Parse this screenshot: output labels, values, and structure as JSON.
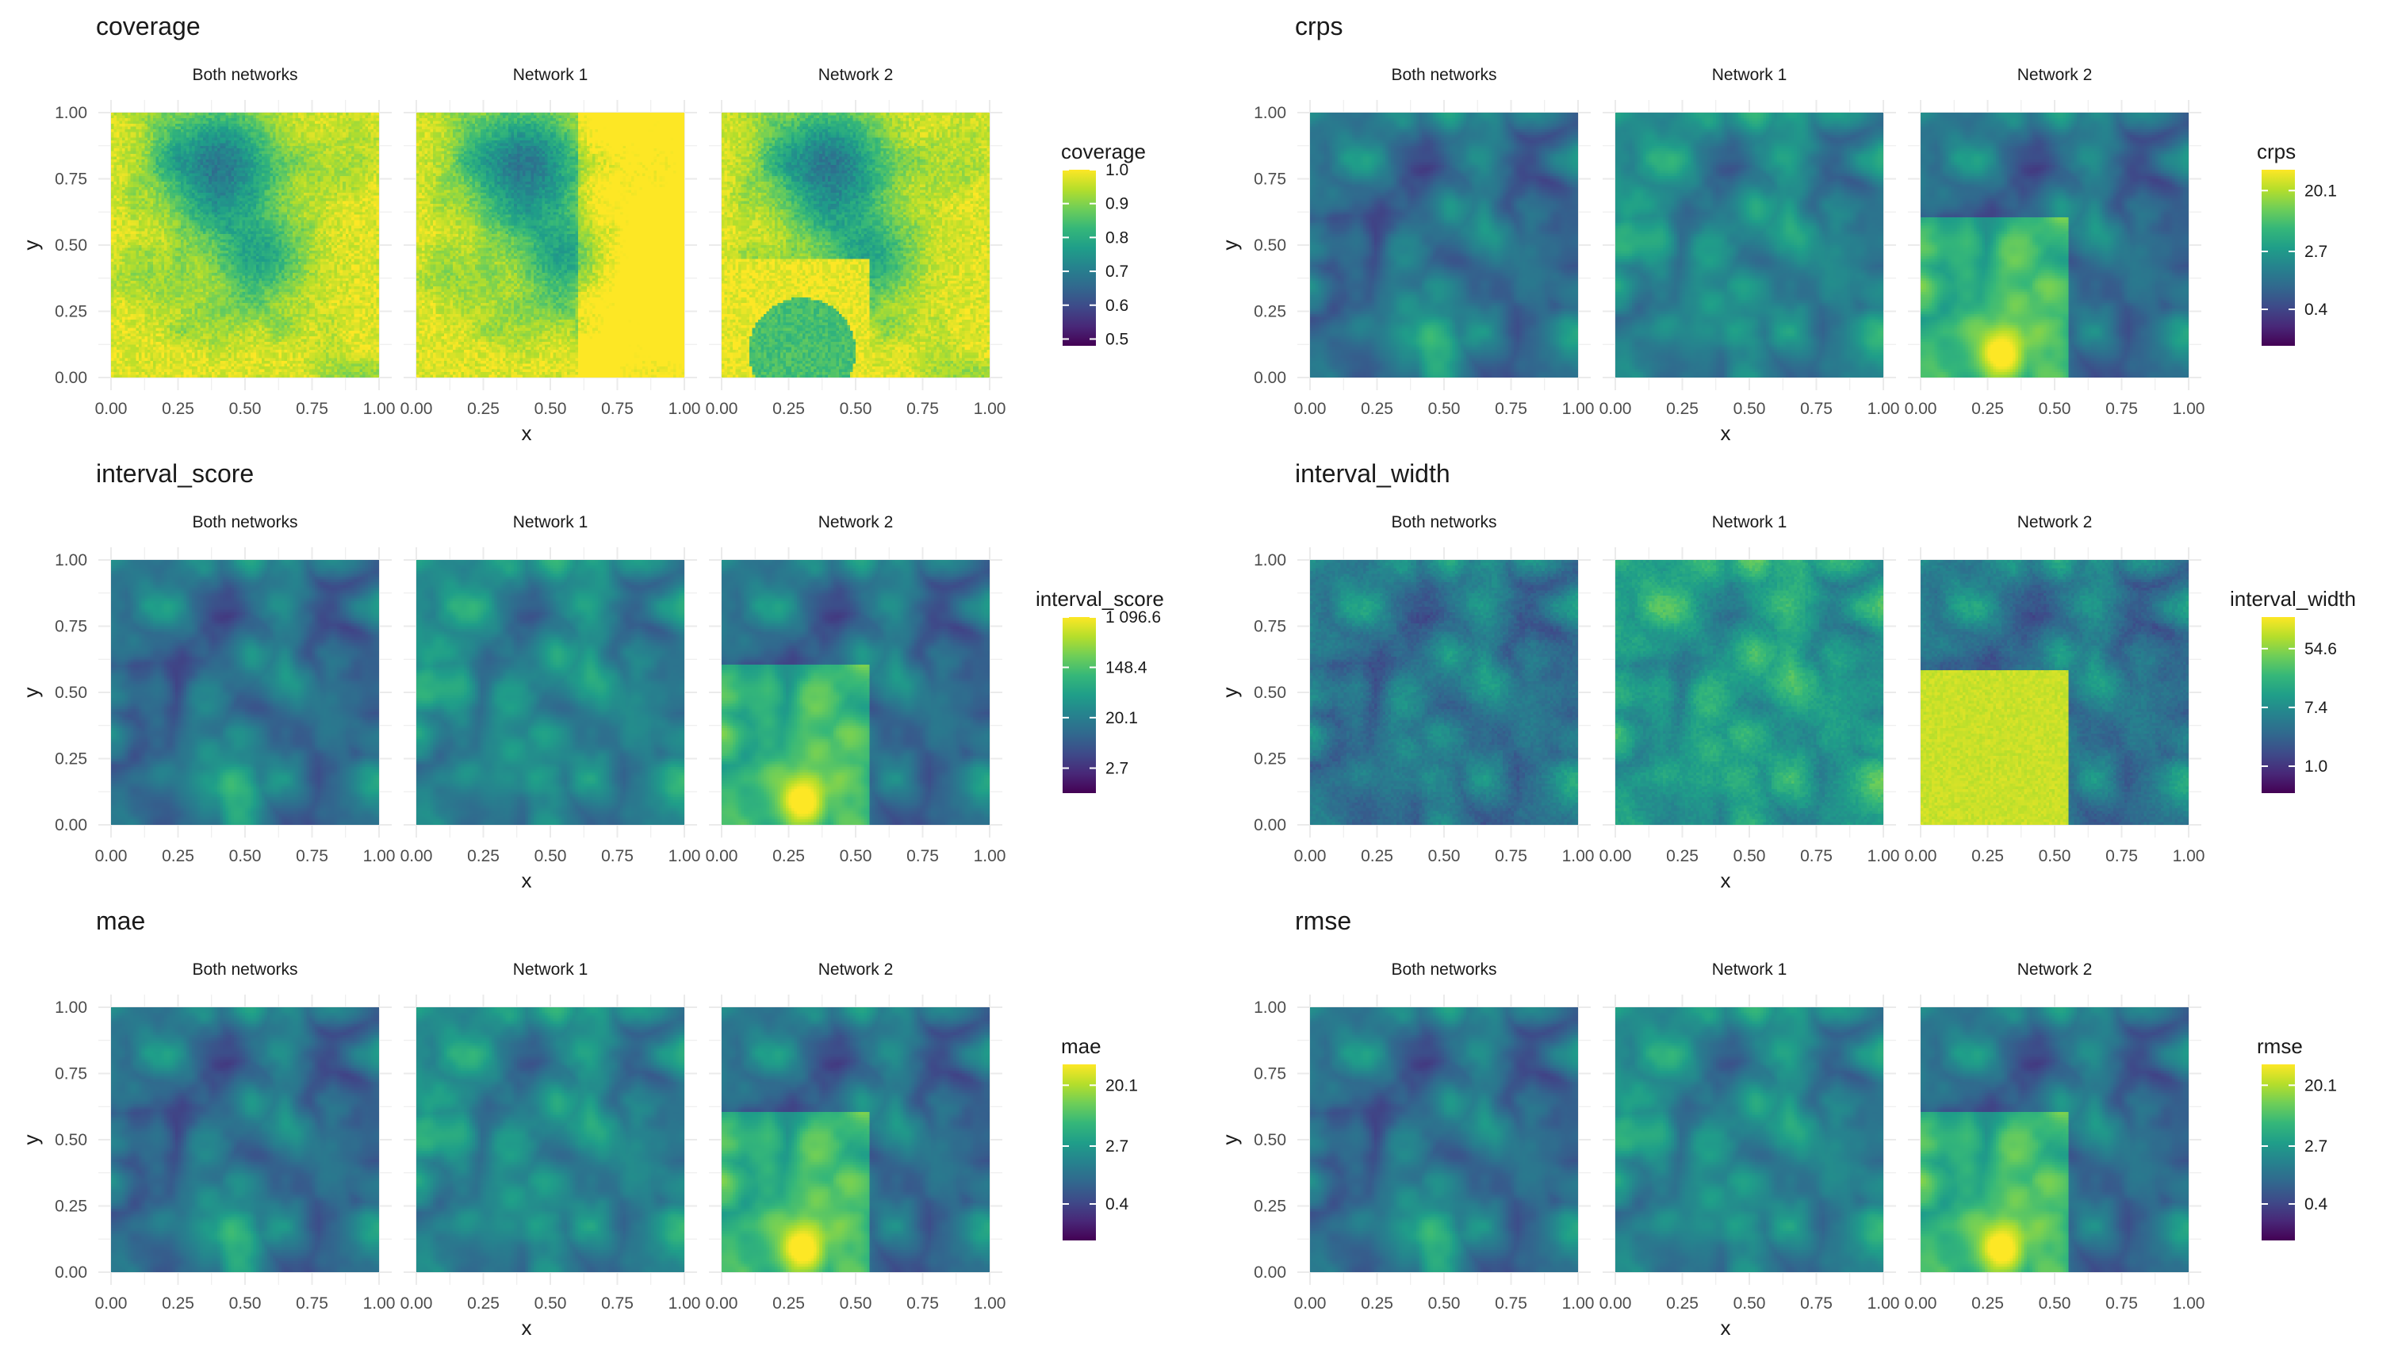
{
  "colors": {
    "background": "#ffffff",
    "grid": "#ebebeb",
    "viridis": [
      "#440154",
      "#482878",
      "#3e4a89",
      "#31688e",
      "#26828e",
      "#1f9e89",
      "#35b779",
      "#6ece58",
      "#b5de2b",
      "#fde725"
    ]
  },
  "chart_data": [
    {
      "type": "heatmap",
      "title": "coverage",
      "metric": "coverage",
      "facets": [
        "Both networks",
        "Network 1",
        "Network 2"
      ],
      "xlabel": "x",
      "ylabel": "y",
      "xticks": [
        "0.00",
        "0.25",
        "0.50",
        "0.75",
        "1.00"
      ],
      "yticks": [
        "0.00",
        "0.25",
        "0.50",
        "0.75",
        "1.00"
      ],
      "xlim": [
        0,
        1
      ],
      "ylim": [
        0,
        1
      ],
      "legend": {
        "title": "coverage",
        "scale": "linear",
        "range": [
          0.48,
          1.0
        ],
        "ticks": [
          "0.5",
          "0.6",
          "0.7",
          "0.8",
          "0.9",
          "1.0"
        ],
        "tick_values": [
          0.5,
          0.6,
          0.7,
          0.8,
          0.9,
          1.0
        ]
      },
      "pattern": "coverage"
    },
    {
      "type": "heatmap",
      "title": "crps",
      "metric": "crps",
      "facets": [
        "Both networks",
        "Network 1",
        "Network 2"
      ],
      "xlabel": "x",
      "ylabel": "y",
      "xticks": [
        "0.00",
        "0.25",
        "0.50",
        "0.75",
        "1.00"
      ],
      "yticks": [
        "0.00",
        "0.25",
        "0.50",
        "0.75",
        "1.00"
      ],
      "xlim": [
        0,
        1
      ],
      "ylim": [
        0,
        1
      ],
      "legend": {
        "title": "crps",
        "scale": "log",
        "range": [
          0.12,
          40
        ],
        "ticks": [
          "0.4",
          "2.7",
          "20.1"
        ],
        "tick_values": [
          0.4,
          2.7,
          20.1
        ]
      },
      "pattern": "error"
    },
    {
      "type": "heatmap",
      "title": "interval_score",
      "metric": "interval_score",
      "facets": [
        "Both networks",
        "Network 1",
        "Network 2"
      ],
      "xlabel": "x",
      "ylabel": "y",
      "xticks": [
        "0.00",
        "0.25",
        "0.50",
        "0.75",
        "1.00"
      ],
      "yticks": [
        "0.00",
        "0.25",
        "0.50",
        "0.75",
        "1.00"
      ],
      "xlim": [
        0,
        1
      ],
      "ylim": [
        0,
        1
      ],
      "legend": {
        "title": "interval_score",
        "scale": "log",
        "range": [
          1.0,
          1096.6
        ],
        "ticks": [
          "2.7",
          "20.1",
          "148.4",
          "1 096.6"
        ],
        "tick_values": [
          2.7,
          20.1,
          148.4,
          1096.6
        ]
      },
      "pattern": "error"
    },
    {
      "type": "heatmap",
      "title": "interval_width",
      "metric": "interval_width",
      "facets": [
        "Both networks",
        "Network 1",
        "Network 2"
      ],
      "xlabel": "x",
      "ylabel": "y",
      "xticks": [
        "0.00",
        "0.25",
        "0.50",
        "0.75",
        "1.00"
      ],
      "yticks": [
        "0.00",
        "0.25",
        "0.50",
        "0.75",
        "1.00"
      ],
      "xlim": [
        0,
        1
      ],
      "ylim": [
        0,
        1
      ],
      "legend": {
        "title": "interval_width",
        "scale": "log",
        "range": [
          0.4,
          160
        ],
        "ticks": [
          "1.0",
          "7.4",
          "54.6"
        ],
        "tick_values": [
          1.0,
          7.4,
          54.6
        ]
      },
      "pattern": "width"
    },
    {
      "type": "heatmap",
      "title": "mae",
      "metric": "mae",
      "facets": [
        "Both networks",
        "Network 1",
        "Network 2"
      ],
      "xlabel": "x",
      "ylabel": "y",
      "xticks": [
        "0.00",
        "0.25",
        "0.50",
        "0.75",
        "1.00"
      ],
      "yticks": [
        "0.00",
        "0.25",
        "0.50",
        "0.75",
        "1.00"
      ],
      "xlim": [
        0,
        1
      ],
      "ylim": [
        0,
        1
      ],
      "legend": {
        "title": "mae",
        "scale": "log",
        "range": [
          0.12,
          40
        ],
        "ticks": [
          "0.4",
          "2.7",
          "20.1"
        ],
        "tick_values": [
          0.4,
          2.7,
          20.1
        ]
      },
      "pattern": "error"
    },
    {
      "type": "heatmap",
      "title": "rmse",
      "metric": "rmse",
      "facets": [
        "Both networks",
        "Network 1",
        "Network 2"
      ],
      "xlabel": "x",
      "ylabel": "y",
      "xticks": [
        "0.00",
        "0.25",
        "0.50",
        "0.75",
        "1.00"
      ],
      "yticks": [
        "0.00",
        "0.25",
        "0.50",
        "0.75",
        "1.00"
      ],
      "xlim": [
        0,
        1
      ],
      "ylim": [
        0,
        1
      ],
      "legend": {
        "title": "rmse",
        "scale": "log",
        "range": [
          0.12,
          40
        ],
        "ticks": [
          "0.4",
          "2.7",
          "20.1"
        ],
        "tick_values": [
          0.4,
          2.7,
          20.1
        ]
      },
      "pattern": "error"
    }
  ]
}
